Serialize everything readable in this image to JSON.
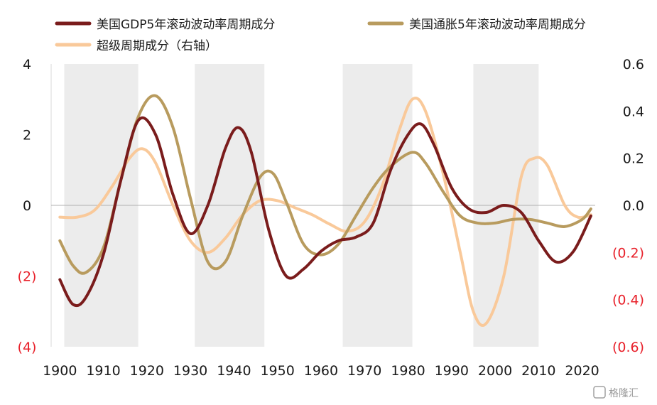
{
  "chart_data": {
    "type": "line",
    "legend": {
      "placement": "top"
    },
    "series": [
      {
        "name": "美国GDP5年滚动波动率周期成分",
        "axis": "left",
        "color": "#7a1c1c",
        "x": [
          1900,
          1903,
          1906,
          1910,
          1914,
          1918,
          1922,
          1926,
          1930,
          1934,
          1938,
          1941,
          1944,
          1948,
          1952,
          1956,
          1960,
          1964,
          1968,
          1972,
          1976,
          1980,
          1983,
          1986,
          1990,
          1994,
          1998,
          2002,
          2006,
          2010,
          2014,
          2018,
          2022
        ],
        "y": [
          -2.1,
          -2.8,
          -2.6,
          -1.4,
          0.7,
          2.4,
          2.0,
          0.3,
          -0.8,
          0.0,
          1.6,
          2.2,
          1.5,
          -0.7,
          -2.0,
          -1.8,
          -1.3,
          -1.0,
          -0.9,
          -0.5,
          1.0,
          2.0,
          2.3,
          1.7,
          0.5,
          -0.1,
          -0.2,
          0.0,
          -0.2,
          -1.0,
          -1.6,
          -1.3,
          -0.3
        ]
      },
      {
        "name": "美国通胀5年滚动波动率周期成分",
        "axis": "left",
        "color": "#b89b5e",
        "x": [
          1900,
          1903,
          1906,
          1910,
          1914,
          1918,
          1922,
          1926,
          1930,
          1934,
          1938,
          1942,
          1946,
          1949,
          1952,
          1956,
          1960,
          1964,
          1968,
          1972,
          1976,
          1981,
          1984,
          1988,
          1992,
          1996,
          2000,
          2004,
          2008,
          2012,
          2016,
          2020,
          2022
        ],
        "y": [
          -1.0,
          -1.7,
          -1.9,
          -1.2,
          0.7,
          2.5,
          3.1,
          2.2,
          0.2,
          -1.6,
          -1.6,
          -0.3,
          0.8,
          0.9,
          0.1,
          -1.1,
          -1.4,
          -1.1,
          -0.3,
          0.5,
          1.1,
          1.5,
          1.2,
          0.4,
          -0.3,
          -0.5,
          -0.5,
          -0.4,
          -0.4,
          -0.5,
          -0.6,
          -0.4,
          -0.1
        ]
      },
      {
        "name": "超级周期成分（右轴）",
        "axis": "right",
        "color": "#f9c99a",
        "x": [
          1900,
          1904,
          1908,
          1912,
          1916,
          1919,
          1922,
          1926,
          1930,
          1934,
          1938,
          1942,
          1946,
          1950,
          1954,
          1958,
          1962,
          1966,
          1970,
          1974,
          1978,
          1981,
          1984,
          1988,
          1992,
          1995,
          1998,
          2002,
          2006,
          2009,
          2012,
          2016,
          2019,
          2022
        ],
        "y": [
          -0.05,
          -0.05,
          -0.02,
          0.08,
          0.2,
          0.24,
          0.18,
          0.0,
          -0.15,
          -0.2,
          -0.14,
          -0.04,
          0.02,
          0.02,
          -0.01,
          -0.04,
          -0.08,
          -0.11,
          -0.07,
          0.08,
          0.32,
          0.45,
          0.4,
          0.14,
          -0.2,
          -0.45,
          -0.5,
          -0.3,
          0.12,
          0.2,
          0.17,
          0.0,
          -0.05,
          -0.04
        ]
      }
    ],
    "shaded_periods": [
      [
        1901,
        1918
      ],
      [
        1931,
        1947
      ],
      [
        1965,
        1981
      ],
      [
        1995,
        2010
      ]
    ],
    "xlim": [
      1898,
      2023
    ],
    "ylim_left": [
      -4,
      4
    ],
    "ylim_right": [
      -0.6,
      0.6
    ],
    "x_ticks": [
      {
        "value": 1900,
        "label": "1900"
      },
      {
        "value": 1910,
        "label": "1910"
      },
      {
        "value": 1920,
        "label": "1920"
      },
      {
        "value": 1930,
        "label": "1930"
      },
      {
        "value": 1940,
        "label": "1940"
      },
      {
        "value": 1950,
        "label": "1950"
      },
      {
        "value": 1960,
        "label": "1960"
      },
      {
        "value": 1970,
        "label": "1970"
      },
      {
        "value": 1980,
        "label": "1980"
      },
      {
        "value": 1990,
        "label": "1990"
      },
      {
        "value": 2000,
        "label": "2000"
      },
      {
        "value": 2010,
        "label": "2010"
      },
      {
        "value": 2020,
        "label": "2020"
      }
    ],
    "y_ticks_left": [
      {
        "value": 4,
        "label": "4",
        "negative": false
      },
      {
        "value": 2,
        "label": "2",
        "negative": false
      },
      {
        "value": 0,
        "label": "0",
        "negative": false
      },
      {
        "value": -2,
        "label": "(2)",
        "negative": true
      },
      {
        "value": -4,
        "label": "(4)",
        "negative": true
      }
    ],
    "y_ticks_right": [
      {
        "value": 0.6,
        "label": "0.6",
        "negative": false
      },
      {
        "value": 0.4,
        "label": "0.4",
        "negative": false
      },
      {
        "value": 0.2,
        "label": "0.2",
        "negative": false
      },
      {
        "value": 0.0,
        "label": "0.0",
        "negative": false
      },
      {
        "value": -0.2,
        "label": "(0.2)",
        "negative": true
      },
      {
        "value": -0.4,
        "label": "(0.4)",
        "negative": true
      },
      {
        "value": -0.6,
        "label": "(0.6)",
        "negative": true
      }
    ],
    "colors": {
      "shade": "#ececec",
      "zero_line": "#b0b0b0",
      "negative_tick": "#e8202a",
      "axis_line": "#d9d9d9"
    },
    "watermark": "格隆汇"
  }
}
